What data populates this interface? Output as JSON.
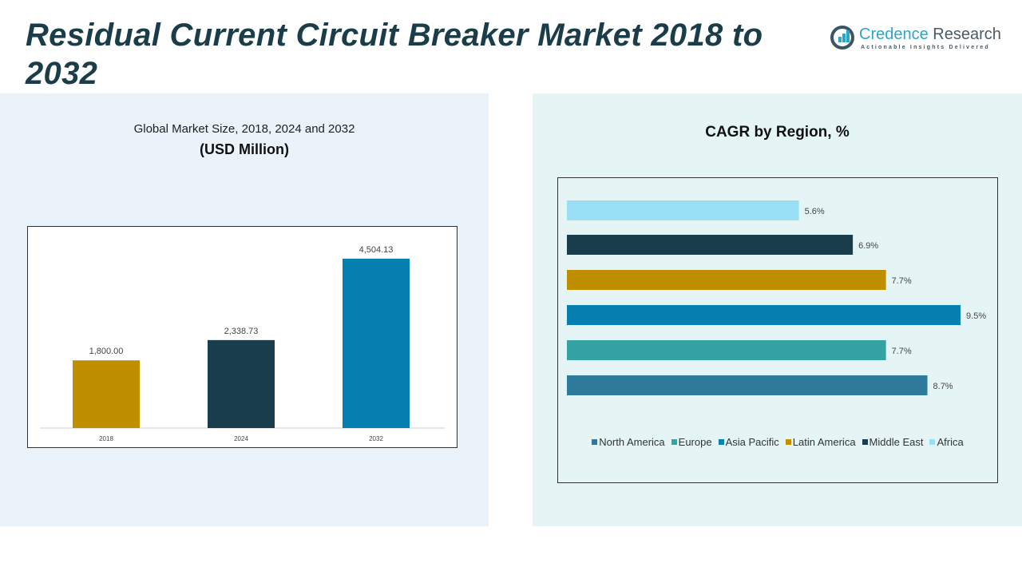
{
  "title": "Residual Current Circuit Breaker Market  2018 to 2032",
  "logo": {
    "name_a": "Credence",
    "name_b": " Research",
    "tagline": "Actionable Insights Delivered"
  },
  "chart_data": [
    {
      "type": "bar",
      "title": "Global Market Size, 2018, 2024 and 2032",
      "subtitle": "(USD Million)",
      "categories": [
        "2018",
        "2024",
        "2032"
      ],
      "values": [
        1800.0,
        2338.73,
        4504.13
      ],
      "labels": [
        "1,800.00",
        "2,338.73",
        "4,504.13"
      ],
      "colors": [
        "#c08f00",
        "#1a3d4c",
        "#0580b0"
      ],
      "ylim": [
        0,
        5000
      ],
      "grid": false
    },
    {
      "type": "bar",
      "orientation": "horizontal",
      "title": "CAGR by Region, %",
      "categories": [
        "North America",
        "Europe",
        "Asia Pacific",
        "Latin America",
        "Middle East",
        "Africa"
      ],
      "values": [
        8.7,
        7.7,
        9.5,
        7.7,
        6.9,
        5.6
      ],
      "labels": [
        "8.7%",
        "7.7%",
        "9.5%",
        "7.7%",
        "6.9%",
        "5.6%"
      ],
      "colors": [
        "#2e7a9a",
        "#33a3a3",
        "#0580b0",
        "#c08f00",
        "#1a3d4c",
        "#99e0f7"
      ],
      "xlim": [
        0,
        10
      ],
      "legend": "bottom",
      "grid": false
    }
  ]
}
